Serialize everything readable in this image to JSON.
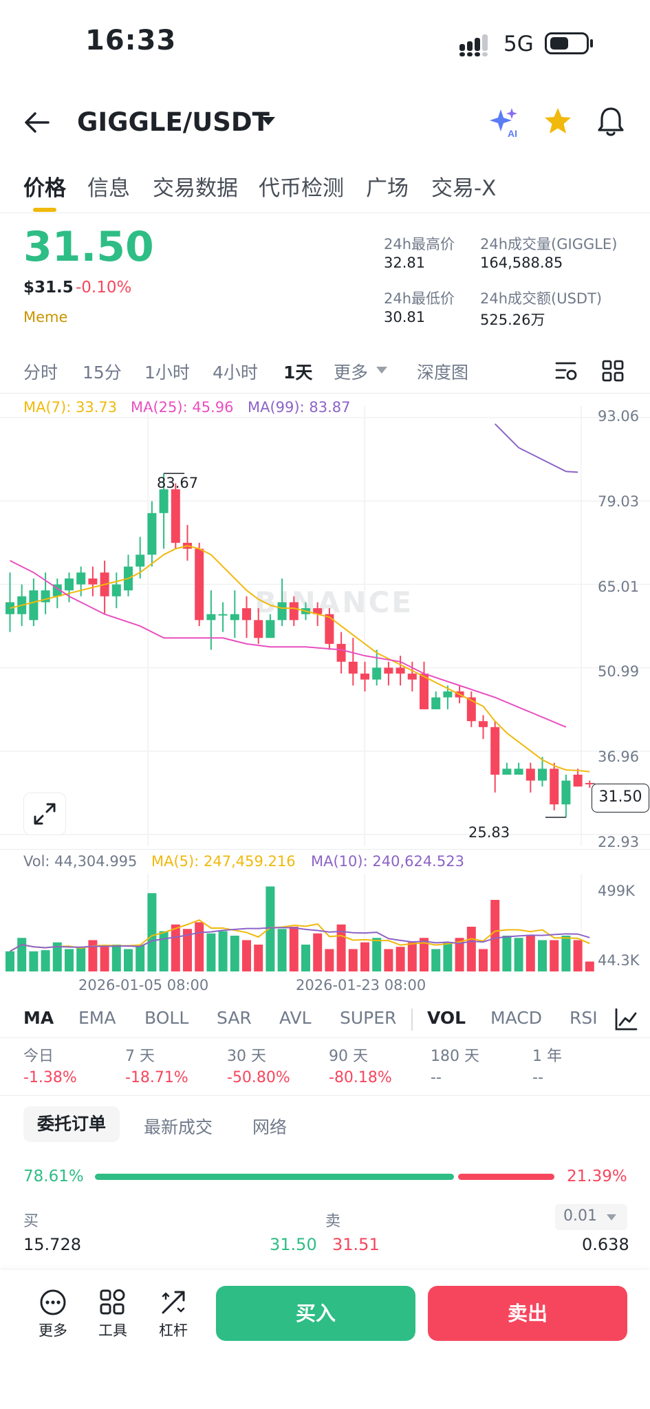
{
  "status": {
    "time": "16:33",
    "network": "5G"
  },
  "header": {
    "pair": "GIGGLE/USDT"
  },
  "tabs": [
    "价格",
    "信息",
    "交易数据",
    "代币检测",
    "广场",
    "交易-X"
  ],
  "ticker": {
    "last_price": "31.50",
    "usd_price": "$31.5",
    "change": "-0.10%",
    "tag": "Meme",
    "high_label": "24h最高价",
    "high": "32.81",
    "vol_label": "24h成交量(GIGGLE)",
    "vol": "164,588.85",
    "low_label": "24h最低价",
    "low": "30.81",
    "turnover_label": "24h成交额(USDT)",
    "turnover": "525.26万"
  },
  "timeframes": [
    "分时",
    "15分",
    "1小时",
    "4小时",
    "1天",
    "更多",
    "深度图"
  ],
  "ma_legend": [
    "MA(7): 33.73",
    "MA(25): 45.96",
    "MA(99): 83.87"
  ],
  "colors": {
    "up": "#2ebd85",
    "down": "#f6465d",
    "ma7": "#f0b90b",
    "ma25": "#e84fc0",
    "ma99": "#8c63c7",
    "accent": "#f0b90b"
  },
  "watermark": "BINANCE",
  "chart_data": {
    "type": "candlestick",
    "price_axis_ticks": [
      "93.06",
      "79.03",
      "65.01",
      "50.99",
      "36.96",
      "22.93"
    ],
    "ylim": [
      22.93,
      93.06
    ],
    "last_price_label": "31.50",
    "high_marker": "83.67",
    "low_marker": "25.83",
    "candles": [
      {
        "o": 60,
        "h": 67,
        "l": 57,
        "c": 62
      },
      {
        "o": 60,
        "h": 65,
        "l": 58,
        "c": 63
      },
      {
        "o": 59,
        "h": 66,
        "l": 58,
        "c": 64
      },
      {
        "o": 62,
        "h": 67,
        "l": 60,
        "c": 64
      },
      {
        "o": 63,
        "h": 66,
        "l": 61,
        "c": 65
      },
      {
        "o": 64,
        "h": 67,
        "l": 62,
        "c": 66
      },
      {
        "o": 65,
        "h": 68,
        "l": 63,
        "c": 67
      },
      {
        "o": 66,
        "h": 68,
        "l": 63,
        "c": 65
      },
      {
        "o": 67,
        "h": 69,
        "l": 60,
        "c": 63
      },
      {
        "o": 63,
        "h": 67,
        "l": 61,
        "c": 65
      },
      {
        "o": 64,
        "h": 70,
        "l": 63,
        "c": 68
      },
      {
        "o": 68,
        "h": 73,
        "l": 66,
        "c": 70
      },
      {
        "o": 70,
        "h": 79,
        "l": 68,
        "c": 77
      },
      {
        "o": 77,
        "h": 83.67,
        "l": 71,
        "c": 81
      },
      {
        "o": 81,
        "h": 82,
        "l": 71,
        "c": 72
      },
      {
        "o": 72,
        "h": 75,
        "l": 69,
        "c": 71
      },
      {
        "o": 71,
        "h": 72,
        "l": 58,
        "c": 59
      },
      {
        "o": 59,
        "h": 64,
        "l": 54,
        "c": 60
      },
      {
        "o": 60,
        "h": 62,
        "l": 57,
        "c": 60
      },
      {
        "o": 59,
        "h": 64,
        "l": 56,
        "c": 60
      },
      {
        "o": 61,
        "h": 63,
        "l": 56,
        "c": 59
      },
      {
        "o": 59,
        "h": 61,
        "l": 55,
        "c": 56
      },
      {
        "o": 56,
        "h": 60,
        "l": 56,
        "c": 59
      },
      {
        "o": 59,
        "h": 66,
        "l": 58,
        "c": 62
      },
      {
        "o": 62,
        "h": 63,
        "l": 58,
        "c": 59
      },
      {
        "o": 60,
        "h": 62,
        "l": 59,
        "c": 61
      },
      {
        "o": 61,
        "h": 62,
        "l": 58,
        "c": 60
      },
      {
        "o": 60,
        "h": 61,
        "l": 54,
        "c": 55
      },
      {
        "o": 55,
        "h": 57,
        "l": 50,
        "c": 52
      },
      {
        "o": 52,
        "h": 56,
        "l": 48,
        "c": 50
      },
      {
        "o": 50,
        "h": 52,
        "l": 47,
        "c": 49
      },
      {
        "o": 49,
        "h": 54,
        "l": 48,
        "c": 51
      },
      {
        "o": 51,
        "h": 52,
        "l": 48,
        "c": 50
      },
      {
        "o": 51,
        "h": 53,
        "l": 48,
        "c": 50
      },
      {
        "o": 50,
        "h": 52,
        "l": 47,
        "c": 49
      },
      {
        "o": 50,
        "h": 52,
        "l": 44,
        "c": 44
      },
      {
        "o": 44,
        "h": 47,
        "l": 44,
        "c": 46
      },
      {
        "o": 46,
        "h": 48,
        "l": 44,
        "c": 47
      },
      {
        "o": 47,
        "h": 48,
        "l": 45,
        "c": 46
      },
      {
        "o": 46,
        "h": 47,
        "l": 41,
        "c": 42
      },
      {
        "o": 42,
        "h": 43,
        "l": 39,
        "c": 41
      },
      {
        "o": 41,
        "h": 42,
        "l": 30,
        "c": 33
      },
      {
        "o": 33,
        "h": 35,
        "l": 33,
        "c": 34
      },
      {
        "o": 33,
        "h": 35,
        "l": 33,
        "c": 34
      },
      {
        "o": 34,
        "h": 35,
        "l": 30,
        "c": 32
      },
      {
        "o": 32,
        "h": 36,
        "l": 31,
        "c": 34
      },
      {
        "o": 34,
        "h": 35,
        "l": 27,
        "c": 28
      },
      {
        "o": 28,
        "h": 33,
        "l": 25.83,
        "c": 32
      },
      {
        "o": 33,
        "h": 34,
        "l": 31,
        "c": 31
      },
      {
        "o": 31.6,
        "h": 32,
        "l": 30.8,
        "c": 31.5
      }
    ],
    "ma7": [
      61,
      61.5,
      62,
      62.5,
      63,
      63.5,
      64,
      64.5,
      65,
      65.5,
      66,
      67,
      68.5,
      70,
      71,
      71.5,
      71,
      70,
      68,
      66,
      64,
      62.5,
      61.5,
      61,
      61,
      60.5,
      60,
      59.5,
      58,
      56.5,
      55,
      53.5,
      52.5,
      51.5,
      50.5,
      49.5,
      48.5,
      47.5,
      46.5,
      45.5,
      44.5,
      42,
      40,
      38.5,
      37,
      35.5,
      34.5,
      33.8,
      33.7,
      33.5
    ],
    "ma25": [
      [
        0,
        69
      ],
      [
        2,
        67
      ],
      [
        5,
        63
      ],
      [
        8,
        60
      ],
      [
        11,
        58
      ],
      [
        13,
        56
      ],
      [
        15,
        56
      ],
      [
        18,
        56
      ],
      [
        20,
        55
      ],
      [
        22,
        54.5
      ],
      [
        25,
        54.5
      ],
      [
        28,
        54
      ],
      [
        30,
        53
      ],
      [
        33,
        52
      ],
      [
        35,
        50
      ],
      [
        38,
        48
      ],
      [
        41,
        46
      ],
      [
        44,
        43.5
      ],
      [
        47,
        41
      ]
    ],
    "ma99": [
      [
        41,
        92
      ],
      [
        43,
        88
      ],
      [
        45,
        86
      ],
      [
        47,
        84
      ],
      [
        48,
        83.87
      ]
    ],
    "volume": {
      "legend": [
        "Vol: 44,304.995",
        "MA(5): 247,459.216",
        "MA(10): 240,624.523"
      ],
      "axis_ticks": [
        "499K",
        "44.3K"
      ],
      "bars": [
        90,
        150,
        90,
        95,
        130,
        100,
        105,
        140,
        110,
        120,
        100,
        120,
        350,
        180,
        210,
        190,
        220,
        170,
        180,
        160,
        140,
        120,
        380,
        190,
        200,
        120,
        170,
        100,
        210,
        100,
        130,
        150,
        100,
        110,
        130,
        150,
        100,
        130,
        150,
        200,
        100,
        320,
        160,
        150,
        160,
        140,
        140,
        160,
        140,
        44.3
      ]
    },
    "date_labels": [
      "2026-01-05 08:00",
      "2026-01-23 08:00"
    ]
  },
  "indicators": {
    "left": [
      "MA",
      "EMA",
      "BOLL",
      "SAR",
      "AVL",
      "SUPER"
    ],
    "right": [
      "VOL",
      "MACD",
      "RSI"
    ]
  },
  "performance": [
    {
      "label": "今日",
      "value": "-1.38%"
    },
    {
      "label": "7 天",
      "value": "-18.71%"
    },
    {
      "label": "30 天",
      "value": "-50.80%"
    },
    {
      "label": "90 天",
      "value": "-80.18%"
    },
    {
      "label": "180 天",
      "value": "--"
    },
    {
      "label": "1 年",
      "value": "--"
    }
  ],
  "orderbook": {
    "tabs": [
      "委托订单",
      "最新成交",
      "网络"
    ],
    "buy_pct": "78.61%",
    "sell_pct": "21.39%",
    "buy_ratio": 0.7861,
    "buy_label": "买",
    "sell_label": "卖",
    "precision": "0.01",
    "rows": [
      {
        "bid_qty": "15.728",
        "bid_price": "31.50",
        "ask_price": "31.51",
        "ask_qty": "0.638"
      }
    ]
  },
  "bottom": {
    "more": "更多",
    "tools": "工具",
    "leverage": "杠杆",
    "buy": "买入",
    "sell": "卖出"
  }
}
